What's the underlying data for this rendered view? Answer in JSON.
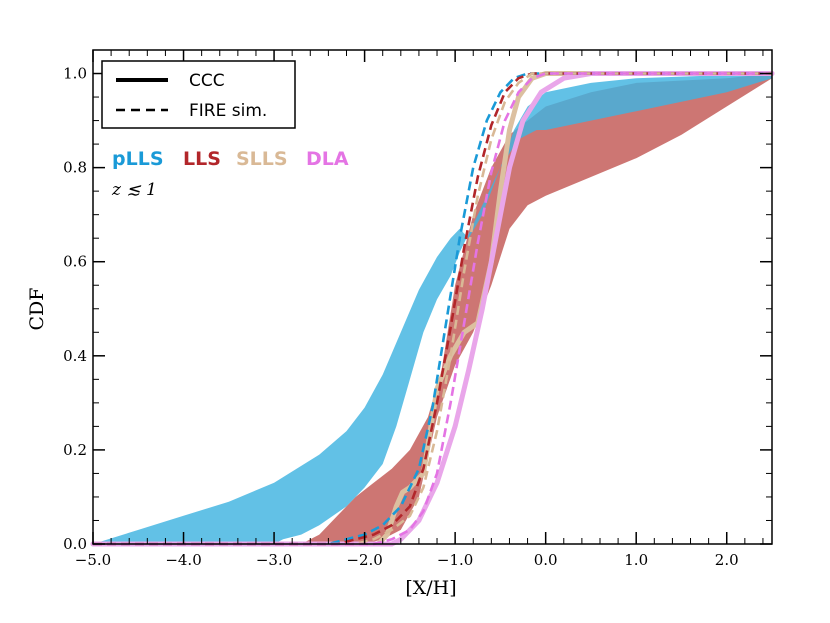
{
  "chart_data": {
    "type": "area",
    "xlabel": "[X/H]",
    "ylabel": "CDF",
    "xlim": [
      -5.0,
      2.5
    ],
    "ylim": [
      0.0,
      1.05
    ],
    "x_ticks": [
      -5.0,
      -4.0,
      -3.0,
      -2.0,
      -1.0,
      0.0,
      1.0,
      2.0
    ],
    "x_tick_labels": [
      "−5.0",
      "−4.0",
      "−3.0",
      "−2.0",
      "−1.0",
      "0.0",
      "1.0",
      "2.0"
    ],
    "y_ticks": [
      0.0,
      0.2,
      0.4,
      0.6,
      0.8,
      1.0
    ],
    "y_tick_labels": [
      "0.0",
      "0.2",
      "0.4",
      "0.6",
      "0.8",
      "1.0"
    ],
    "legend": {
      "placement": "top-left",
      "entries": [
        {
          "label": "CCC",
          "style": "solid"
        },
        {
          "label": "FIRE sim.",
          "style": "dashed"
        }
      ]
    },
    "category_labels": [
      {
        "label": "pLLS",
        "color": "#1a9ad7"
      },
      {
        "label": "LLS",
        "color": "#b2262a"
      },
      {
        "label": "SLLS",
        "color": "#d9b996"
      },
      {
        "label": "DLA",
        "color": "#e474e4"
      }
    ],
    "annotation": "z ≲ 1",
    "bands": [
      {
        "key": "LLS",
        "color": "#c05450",
        "opacity": 0.8,
        "upper": [
          [
            -5.0,
            0.0
          ],
          [
            -2.7,
            0.0
          ],
          [
            -2.5,
            0.02
          ],
          [
            -2.3,
            0.06
          ],
          [
            -2.1,
            0.1
          ],
          [
            -1.9,
            0.13
          ],
          [
            -1.7,
            0.16
          ],
          [
            -1.5,
            0.2
          ],
          [
            -1.3,
            0.27
          ],
          [
            -1.15,
            0.37
          ],
          [
            -1.0,
            0.55
          ],
          [
            -0.8,
            0.7
          ],
          [
            -0.6,
            0.8
          ],
          [
            -0.4,
            0.87
          ],
          [
            -0.2,
            0.9
          ],
          [
            0.0,
            0.93
          ],
          [
            0.5,
            0.96
          ],
          [
            1.0,
            0.98
          ],
          [
            2.0,
            0.99
          ],
          [
            2.5,
            1.0
          ]
        ],
        "lower": [
          [
            -5.0,
            0.0
          ],
          [
            -2.0,
            0.0
          ],
          [
            -1.8,
            0.01
          ],
          [
            -1.6,
            0.03
          ],
          [
            -1.4,
            0.1
          ],
          [
            -1.2,
            0.27
          ],
          [
            -1.0,
            0.38
          ],
          [
            -0.8,
            0.45
          ],
          [
            -0.6,
            0.55
          ],
          [
            -0.4,
            0.67
          ],
          [
            -0.2,
            0.72
          ],
          [
            0.0,
            0.74
          ],
          [
            0.5,
            0.78
          ],
          [
            1.0,
            0.82
          ],
          [
            1.5,
            0.87
          ],
          [
            2.0,
            0.93
          ],
          [
            2.5,
            0.99
          ]
        ]
      },
      {
        "key": "pLLS",
        "color": "#3fb3e0",
        "opacity": 0.82,
        "upper": [
          [
            -5.0,
            0.0
          ],
          [
            -4.5,
            0.03
          ],
          [
            -4.0,
            0.06
          ],
          [
            -3.5,
            0.09
          ],
          [
            -3.0,
            0.13
          ],
          [
            -2.5,
            0.19
          ],
          [
            -2.2,
            0.24
          ],
          [
            -2.0,
            0.29
          ],
          [
            -1.8,
            0.36
          ],
          [
            -1.6,
            0.45
          ],
          [
            -1.4,
            0.54
          ],
          [
            -1.2,
            0.61
          ],
          [
            -1.05,
            0.65
          ],
          [
            -0.95,
            0.67
          ],
          [
            -0.85,
            0.65
          ],
          [
            -0.7,
            0.7
          ],
          [
            -0.5,
            0.8
          ],
          [
            -0.35,
            0.88
          ],
          [
            -0.2,
            0.93
          ],
          [
            0.0,
            0.96
          ],
          [
            0.5,
            0.98
          ],
          [
            1.0,
            0.99
          ],
          [
            2.5,
            1.0
          ]
        ],
        "lower": [
          [
            -5.0,
            0.0
          ],
          [
            -3.0,
            0.0
          ],
          [
            -2.9,
            0.01
          ],
          [
            -2.7,
            0.02
          ],
          [
            -2.5,
            0.04
          ],
          [
            -2.2,
            0.08
          ],
          [
            -2.0,
            0.12
          ],
          [
            -1.8,
            0.17
          ],
          [
            -1.65,
            0.25
          ],
          [
            -1.5,
            0.35
          ],
          [
            -1.35,
            0.45
          ],
          [
            -1.2,
            0.52
          ],
          [
            -1.05,
            0.57
          ],
          [
            -0.95,
            0.62
          ],
          [
            -0.75,
            0.7
          ],
          [
            -0.5,
            0.8
          ],
          [
            -0.3,
            0.86
          ],
          [
            -0.1,
            0.88
          ],
          [
            0.0,
            0.88
          ],
          [
            0.5,
            0.9
          ],
          [
            1.0,
            0.92
          ],
          [
            1.5,
            0.94
          ],
          [
            2.0,
            0.96
          ],
          [
            2.5,
            0.99
          ]
        ]
      }
    ],
    "ccc_lines": [
      {
        "key": "SLLS",
        "color": "#dcc0a0",
        "width": 5,
        "points": [
          [
            -5.0,
            0.0
          ],
          [
            -1.85,
            0.0
          ],
          [
            -1.75,
            0.02
          ],
          [
            -1.65,
            0.08
          ],
          [
            -1.58,
            0.11
          ],
          [
            -1.5,
            0.12
          ],
          [
            -1.35,
            0.15
          ],
          [
            -1.2,
            0.33
          ],
          [
            -1.05,
            0.4
          ],
          [
            -0.9,
            0.45
          ],
          [
            -0.75,
            0.47
          ],
          [
            -0.6,
            0.6
          ],
          [
            -0.5,
            0.75
          ],
          [
            -0.4,
            0.88
          ],
          [
            -0.3,
            0.95
          ],
          [
            -0.15,
            0.99
          ],
          [
            0.0,
            1.0
          ],
          [
            2.5,
            1.0
          ]
        ]
      },
      {
        "key": "DLA",
        "color": "#e9a6ea",
        "width": 5,
        "points": [
          [
            -5.0,
            0.0
          ],
          [
            -1.7,
            0.0
          ],
          [
            -1.6,
            0.01
          ],
          [
            -1.4,
            0.05
          ],
          [
            -1.2,
            0.13
          ],
          [
            -1.0,
            0.25
          ],
          [
            -0.85,
            0.37
          ],
          [
            -0.7,
            0.5
          ],
          [
            -0.55,
            0.65
          ],
          [
            -0.4,
            0.8
          ],
          [
            -0.25,
            0.9
          ],
          [
            -0.05,
            0.96
          ],
          [
            0.2,
            0.99
          ],
          [
            0.5,
            1.0
          ],
          [
            2.5,
            1.0
          ]
        ]
      }
    ],
    "fire_lines": [
      {
        "key": "pLLS",
        "color": "#1a9ad7",
        "points": [
          [
            -5.0,
            0.0
          ],
          [
            -2.4,
            0.0
          ],
          [
            -2.2,
            0.01
          ],
          [
            -2.0,
            0.02
          ],
          [
            -1.8,
            0.04
          ],
          [
            -1.6,
            0.08
          ],
          [
            -1.4,
            0.16
          ],
          [
            -1.25,
            0.29
          ],
          [
            -1.1,
            0.47
          ],
          [
            -0.95,
            0.65
          ],
          [
            -0.8,
            0.8
          ],
          [
            -0.65,
            0.9
          ],
          [
            -0.5,
            0.96
          ],
          [
            -0.35,
            0.99
          ],
          [
            -0.2,
            1.0
          ],
          [
            2.5,
            1.0
          ]
        ]
      },
      {
        "key": "LLS",
        "color": "#b2262a",
        "points": [
          [
            -5.0,
            0.0
          ],
          [
            -2.3,
            0.0
          ],
          [
            -2.1,
            0.01
          ],
          [
            -1.9,
            0.02
          ],
          [
            -1.7,
            0.04
          ],
          [
            -1.5,
            0.08
          ],
          [
            -1.35,
            0.16
          ],
          [
            -1.2,
            0.3
          ],
          [
            -1.05,
            0.46
          ],
          [
            -0.9,
            0.63
          ],
          [
            -0.75,
            0.78
          ],
          [
            -0.6,
            0.89
          ],
          [
            -0.45,
            0.96
          ],
          [
            -0.3,
            0.99
          ],
          [
            -0.15,
            1.0
          ],
          [
            2.5,
            1.0
          ]
        ]
      },
      {
        "key": "SLLS",
        "color": "#d9b996",
        "points": [
          [
            -5.0,
            0.0
          ],
          [
            -2.1,
            0.0
          ],
          [
            -1.9,
            0.01
          ],
          [
            -1.7,
            0.03
          ],
          [
            -1.5,
            0.06
          ],
          [
            -1.35,
            0.12
          ],
          [
            -1.2,
            0.24
          ],
          [
            -1.05,
            0.4
          ],
          [
            -0.9,
            0.58
          ],
          [
            -0.75,
            0.74
          ],
          [
            -0.6,
            0.86
          ],
          [
            -0.45,
            0.94
          ],
          [
            -0.3,
            0.98
          ],
          [
            -0.15,
            1.0
          ],
          [
            2.5,
            1.0
          ]
        ]
      },
      {
        "key": "DLA",
        "color": "#e474e4",
        "points": [
          [
            -5.0,
            0.0
          ],
          [
            -1.9,
            0.0
          ],
          [
            -1.7,
            0.01
          ],
          [
            -1.5,
            0.03
          ],
          [
            -1.35,
            0.07
          ],
          [
            -1.2,
            0.15
          ],
          [
            -1.05,
            0.3
          ],
          [
            -0.9,
            0.47
          ],
          [
            -0.75,
            0.64
          ],
          [
            -0.6,
            0.79
          ],
          [
            -0.45,
            0.9
          ],
          [
            -0.3,
            0.96
          ],
          [
            -0.15,
            0.99
          ],
          [
            0.0,
            1.0
          ],
          [
            2.5,
            1.0
          ]
        ]
      }
    ]
  }
}
